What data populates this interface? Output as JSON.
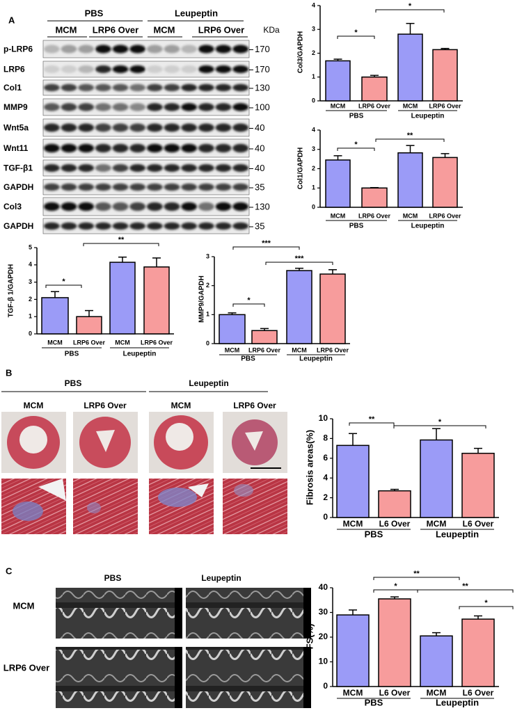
{
  "panel_labels": [
    "A",
    "B",
    "C"
  ],
  "blot": {
    "groups": [
      "PBS",
      "Leupeptin"
    ],
    "lanes": [
      "MCM",
      "LRP6 Over",
      "MCM",
      "LRP6 Over"
    ],
    "unit": "KDa",
    "rows": [
      {
        "label": "p-LRP6",
        "kda": "170"
      },
      {
        "label": "LRP6",
        "kda": "170"
      },
      {
        "label": "Col1",
        "kda": "130"
      },
      {
        "label": "MMP9",
        "kda": "100"
      },
      {
        "label": "Wnt5a",
        "kda": "40"
      },
      {
        "label": "Wnt11",
        "kda": "40"
      },
      {
        "label": "TGF-β1",
        "kda": "40"
      },
      {
        "label": "GAPDH",
        "kda": "35"
      },
      {
        "label": "Col3",
        "kda": "130"
      },
      {
        "label": "GAPDH",
        "kda": "35"
      }
    ]
  },
  "histology": {
    "groups": [
      "PBS",
      "Leupeptin"
    ],
    "columns": [
      "MCM",
      "LRP6 Over",
      "MCM",
      "LRP6 Over"
    ]
  },
  "echo": {
    "columns": [
      "PBS",
      "Leupeptin"
    ],
    "rows": [
      "MCM",
      "LRP6 Over"
    ]
  },
  "chart_data": [
    {
      "type": "bar",
      "y_label": "Col3/GAPDH",
      "categories": [
        "MCM",
        "LRP6 Over",
        "MCM",
        "LRP6 Over"
      ],
      "groups": [
        "PBS",
        "Leupeptin"
      ],
      "values": [
        1.68,
        1.0,
        2.8,
        2.15
      ],
      "errors": [
        0.07,
        0.07,
        0.45,
        0.05
      ],
      "colors": [
        "#9b9bf7",
        "#f79c9c",
        "#9b9bf7",
        "#f79c9c"
      ],
      "ylim": [
        0,
        4
      ],
      "yticks": [
        0,
        1,
        2,
        3,
        4
      ],
      "annotations": [
        "*",
        "*"
      ]
    },
    {
      "type": "bar",
      "y_label": "Col1/GAPDH",
      "categories": [
        "MCM",
        "LRP6 Over",
        "MCM",
        "LRP6 Over"
      ],
      "groups": [
        "PBS",
        "Leupeptin"
      ],
      "values": [
        2.45,
        1.0,
        2.82,
        2.58
      ],
      "errors": [
        0.22,
        0.02,
        0.38,
        0.2
      ],
      "colors": [
        "#9b9bf7",
        "#f79c9c",
        "#9b9bf7",
        "#f79c9c"
      ],
      "ylim": [
        0,
        4
      ],
      "yticks": [
        0,
        1,
        2,
        3,
        4
      ],
      "annotations": [
        "*",
        "**"
      ]
    },
    {
      "type": "bar",
      "y_label": "TGF-β 1/GAPDH",
      "categories": [
        "MCM",
        "LRP6 Over",
        "MCM",
        "LRP6 Over"
      ],
      "groups": [
        "PBS",
        "Leupeptin"
      ],
      "values": [
        2.1,
        1.0,
        4.15,
        3.88
      ],
      "errors": [
        0.35,
        0.35,
        0.3,
        0.52
      ],
      "colors": [
        "#9b9bf7",
        "#f79c9c",
        "#9b9bf7",
        "#f79c9c"
      ],
      "ylim": [
        0,
        5
      ],
      "yticks": [
        0,
        1,
        2,
        3,
        4,
        5
      ],
      "annotations": [
        "*",
        "**"
      ]
    },
    {
      "type": "bar",
      "y_label": "MMP9/GAPDH",
      "categories": [
        "MCM",
        "LRP6 Over",
        "MCM",
        "LRP6 Over"
      ],
      "groups": [
        "PBS",
        "Leupeptin"
      ],
      "values": [
        1.0,
        0.45,
        2.52,
        2.4
      ],
      "errors": [
        0.06,
        0.07,
        0.08,
        0.15
      ],
      "colors": [
        "#9b9bf7",
        "#f79c9c",
        "#9b9bf7",
        "#f79c9c"
      ],
      "ylim": [
        0,
        3
      ],
      "yticks": [
        0,
        1,
        2,
        3
      ],
      "annotations": [
        "*",
        "***",
        "***"
      ]
    },
    {
      "type": "bar",
      "y_label": "Fibrosis areas(%)",
      "categories": [
        "MCM",
        "L6 Over",
        "MCM",
        "L6 Over"
      ],
      "groups": [
        "PBS",
        "Leupeptin"
      ],
      "values": [
        7.3,
        2.7,
        7.85,
        6.5
      ],
      "errors": [
        1.2,
        0.15,
        1.15,
        0.5
      ],
      "colors": [
        "#9b9bf7",
        "#f79c9c",
        "#9b9bf7",
        "#f79c9c"
      ],
      "ylim": [
        0,
        10
      ],
      "yticks": [
        0,
        2,
        4,
        6,
        8,
        10
      ],
      "annotations": [
        "**",
        "*"
      ]
    },
    {
      "type": "bar",
      "y_label": "FS(%)",
      "categories": [
        "MCM",
        "L6 Over",
        "MCM",
        "L6 Over"
      ],
      "groups": [
        "PBS",
        "Leupeptin"
      ],
      "values": [
        29,
        35.5,
        20.5,
        27.3
      ],
      "errors": [
        2,
        0.8,
        1.3,
        1.3
      ],
      "colors": [
        "#9b9bf7",
        "#f79c9c",
        "#9b9bf7",
        "#f79c9c"
      ],
      "ylim": [
        0,
        40
      ],
      "yticks": [
        0,
        10,
        20,
        30,
        40
      ],
      "annotations": [
        "*",
        "**",
        "**",
        "*"
      ]
    }
  ]
}
